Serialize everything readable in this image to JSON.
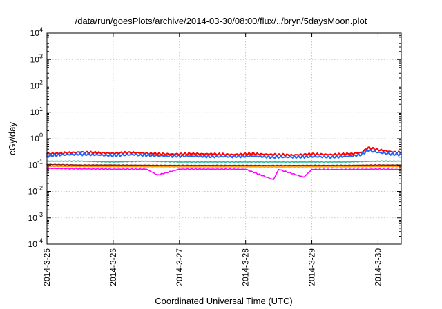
{
  "chart_data": {
    "type": "line",
    "title": "/data/run/goesPlots/archive/2014-03-30/08:00/flux/../bryn/5daysMoon.plot",
    "xlabel": "Coordinated Universal Time (UTC)",
    "ylabel": "cGy/day",
    "yscale": "log",
    "ylim": [
      0.0001,
      10000
    ],
    "xlim_days": [
      0,
      5.35
    ],
    "x_ticks": [
      {
        "label": "2014-3-25",
        "day": 0
      },
      {
        "label": "2014-3-26",
        "day": 1
      },
      {
        "label": "2014-3-27",
        "day": 2
      },
      {
        "label": "2014-3-28",
        "day": 3
      },
      {
        "label": "2014-3-29",
        "day": 4
      },
      {
        "label": "2014-3-30",
        "day": 5
      }
    ],
    "y_ticks": [
      {
        "base": "10",
        "exp": "4",
        "value": 10000
      },
      {
        "base": "10",
        "exp": "3",
        "value": 1000
      },
      {
        "base": "10",
        "exp": "2",
        "value": 100
      },
      {
        "base": "10",
        "exp": "1",
        "value": 10
      },
      {
        "base": "10",
        "exp": "0",
        "value": 1
      },
      {
        "base": "10",
        "exp": "-1",
        "value": 0.1
      },
      {
        "base": "10",
        "exp": "-2",
        "value": 0.01
      },
      {
        "base": "10",
        "exp": "-3",
        "value": 0.001
      },
      {
        "base": "10",
        "exp": "-4",
        "value": 0.0001
      }
    ],
    "grid": true,
    "legend": "none",
    "series": [
      {
        "color": "#ff0000",
        "x": [
          0,
          0.2,
          0.5,
          0.8,
          1.0,
          1.3,
          1.6,
          1.9,
          2.2,
          2.5,
          2.8,
          3.1,
          3.4,
          3.7,
          4.0,
          4.3,
          4.6,
          4.75,
          4.85,
          5.0,
          5.2,
          5.35
        ],
        "y": [
          0.27,
          0.28,
          0.31,
          0.29,
          0.28,
          0.3,
          0.27,
          0.26,
          0.27,
          0.26,
          0.25,
          0.27,
          0.25,
          0.24,
          0.26,
          0.25,
          0.27,
          0.3,
          0.46,
          0.38,
          0.32,
          0.3
        ]
      },
      {
        "color": "#1a66ff",
        "x": [
          0,
          0.2,
          0.5,
          0.8,
          1.0,
          1.3,
          1.6,
          1.9,
          2.2,
          2.5,
          2.8,
          3.1,
          3.4,
          3.7,
          4.0,
          4.3,
          4.6,
          4.75,
          4.85,
          5.0,
          5.2,
          5.35
        ],
        "y": [
          0.22,
          0.24,
          0.26,
          0.24,
          0.23,
          0.25,
          0.23,
          0.22,
          0.22,
          0.21,
          0.21,
          0.22,
          0.2,
          0.2,
          0.21,
          0.2,
          0.22,
          0.25,
          0.36,
          0.3,
          0.26,
          0.25
        ]
      },
      {
        "color": "#22bb99",
        "x": [
          0,
          0.5,
          1.0,
          1.5,
          2.0,
          2.5,
          3.0,
          3.5,
          4.0,
          4.5,
          5.0,
          5.35
        ],
        "y": [
          0.14,
          0.14,
          0.13,
          0.14,
          0.13,
          0.13,
          0.13,
          0.13,
          0.13,
          0.13,
          0.14,
          0.14
        ]
      },
      {
        "color": "#8a2020",
        "x": [
          0,
          0.5,
          1.0,
          1.5,
          2.0,
          2.5,
          3.0,
          3.5,
          4.0,
          4.5,
          5.0,
          5.35
        ],
        "y": [
          0.105,
          0.1,
          0.1,
          0.098,
          0.097,
          0.097,
          0.097,
          0.096,
          0.097,
          0.097,
          0.1,
          0.1
        ]
      },
      {
        "color": "#ff9a00",
        "x": [
          0,
          0.5,
          1.0,
          1.5,
          2.0,
          2.5,
          3.0,
          3.5,
          4.0,
          4.5,
          5.0,
          5.35
        ],
        "y": [
          0.09,
          0.088,
          0.087,
          0.087,
          0.086,
          0.086,
          0.086,
          0.085,
          0.086,
          0.086,
          0.088,
          0.088
        ]
      },
      {
        "color": "#ff00ff",
        "x": [
          0,
          0.5,
          1.0,
          1.5,
          1.67,
          2.0,
          2.5,
          3.0,
          3.42,
          3.5,
          3.88,
          4.0,
          4.5,
          5.0,
          5.35
        ],
        "y": [
          0.075,
          0.072,
          0.07,
          0.07,
          0.042,
          0.07,
          0.07,
          0.069,
          0.028,
          0.068,
          0.035,
          0.068,
          0.068,
          0.07,
          0.068
        ]
      }
    ]
  }
}
